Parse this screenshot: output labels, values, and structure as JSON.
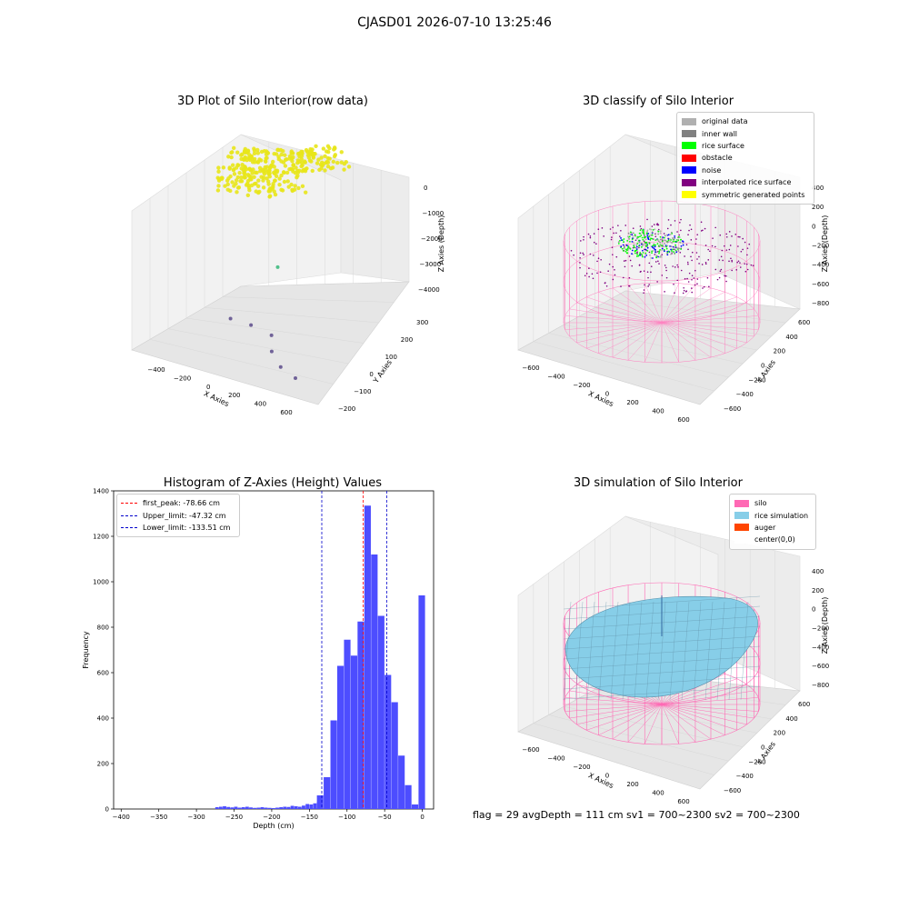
{
  "suptitle": "CJASD01 2026-07-10 13:25:46",
  "status_text": "flag = 29  avgDepth = 111 cm  sv1 = 700~2300  sv2 = 700~2300",
  "chart_data": [
    {
      "type": "scatter",
      "projection": "3d",
      "title": "3D Plot of Silo Interior(row data)",
      "xlabel": "X Axies",
      "ylabel": "Y Axies",
      "zlabel": "Z Axies (Depth)",
      "x_ticks": [
        "−400",
        "−200",
        "0",
        "200",
        "400",
        "600"
      ],
      "y_ticks": [
        "−200",
        "−100",
        "0",
        "100",
        "200",
        "300"
      ],
      "z_ticks": [
        "0",
        "−1000",
        "−2000",
        "−3000",
        "−4000"
      ],
      "xlim": [
        -500,
        700
      ],
      "ylim": [
        -250,
        350
      ],
      "zlim": [
        -4500,
        200
      ],
      "colormap": "viridis",
      "cluster_points": [
        {
          "x": -300,
          "y": 200,
          "z": -500
        },
        {
          "x": -150,
          "y": 180,
          "z": -400
        },
        {
          "x": 0,
          "y": 220,
          "z": -350
        },
        {
          "x": 150,
          "y": 260,
          "z": -300
        },
        {
          "x": 280,
          "y": 300,
          "z": -250
        },
        {
          "x": -250,
          "y": 100,
          "z": -700
        },
        {
          "x": -80,
          "y": 80,
          "z": -650
        },
        {
          "x": 100,
          "y": 140,
          "z": -550
        }
      ],
      "outlier_points": [
        {
          "x": 20,
          "y": 150,
          "z": -3000
        },
        {
          "x": -100,
          "y": -80,
          "z": -3800
        },
        {
          "x": 50,
          "y": -60,
          "z": -3900
        },
        {
          "x": 200,
          "y": -40,
          "z": -4100
        },
        {
          "x": 300,
          "y": -120,
          "z": -4200
        },
        {
          "x": 450,
          "y": -180,
          "z": -4300
        },
        {
          "x": 600,
          "y": -200,
          "z": -4400
        }
      ]
    },
    {
      "type": "scatter",
      "projection": "3d",
      "title": "3D classify of Silo Interior",
      "xlabel": "X Axies",
      "ylabel": "Y Axies",
      "zlabel": "Z Axies (Depth)",
      "x_ticks": [
        "−600",
        "−400",
        "−200",
        "0",
        "200",
        "400",
        "600"
      ],
      "y_ticks": [
        "−600",
        "−400",
        "−200",
        "0",
        "200",
        "400",
        "600"
      ],
      "z_ticks": [
        "400",
        "200",
        "0",
        "−200",
        "−400",
        "−600",
        "−800"
      ],
      "legend": [
        {
          "label": "original data",
          "color": "#b0b0b0"
        },
        {
          "label": "inner wall",
          "color": "#808080"
        },
        {
          "label": "rice surface",
          "color": "#00ff00"
        },
        {
          "label": "obstacle",
          "color": "#ff0000"
        },
        {
          "label": "noise",
          "color": "#0000ff"
        },
        {
          "label": "interpolated rice surface",
          "color": "#800080"
        },
        {
          "label": "symmetric generated points",
          "color": "#ffff00"
        }
      ],
      "wireframe_color": "#ff80c0"
    },
    {
      "type": "bar",
      "title": "Histogram of Z-Axies (Height) Values",
      "xlabel": "Depth (cm)",
      "ylabel": "Frequency",
      "xlim": [
        -410,
        15
      ],
      "ylim": [
        0,
        1400
      ],
      "bin_width": 5,
      "bar_color": "#4d4dff",
      "x_ticks": [
        -400,
        -350,
        -300,
        -250,
        -200,
        -150,
        -100,
        -50,
        0
      ],
      "x_tick_labels": [
        "−400",
        "−350",
        "−300",
        "−250",
        "−200",
        "−150",
        "−100",
        "−50",
        "0"
      ],
      "y_ticks": [
        0,
        200,
        400,
        600,
        800,
        1000,
        1200,
        1400
      ],
      "bins": [
        {
          "x": -275,
          "count": 8
        },
        {
          "x": -270,
          "count": 10
        },
        {
          "x": -265,
          "count": 12
        },
        {
          "x": -260,
          "count": 9
        },
        {
          "x": -255,
          "count": 7
        },
        {
          "x": -250,
          "count": 10
        },
        {
          "x": -245,
          "count": 6
        },
        {
          "x": -240,
          "count": 8
        },
        {
          "x": -235,
          "count": 10
        },
        {
          "x": -230,
          "count": 7
        },
        {
          "x": -225,
          "count": 5
        },
        {
          "x": -220,
          "count": 6
        },
        {
          "x": -215,
          "count": 8
        },
        {
          "x": -210,
          "count": 6
        },
        {
          "x": -205,
          "count": 5
        },
        {
          "x": -200,
          "count": 4
        },
        {
          "x": -195,
          "count": 6
        },
        {
          "x": -190,
          "count": 8
        },
        {
          "x": -185,
          "count": 10
        },
        {
          "x": -180,
          "count": 9
        },
        {
          "x": -175,
          "count": 14
        },
        {
          "x": -170,
          "count": 12
        },
        {
          "x": -165,
          "count": 10
        },
        {
          "x": -160,
          "count": 15
        },
        {
          "x": -155,
          "count": 22
        },
        {
          "x": -150,
          "count": 20
        },
        {
          "x": -145,
          "count": 25
        },
        {
          "x": -140,
          "count": 30
        },
        {
          "x": -135,
          "count": 60
        },
        {
          "x": -130,
          "count": 140
        },
        {
          "x": -125,
          "count": 390
        },
        {
          "x": -120,
          "count": 630
        },
        {
          "x": -115,
          "count": 745
        },
        {
          "x": -110,
          "count": 675
        },
        {
          "x": -105,
          "count": 825
        },
        {
          "x": -100,
          "count": 1335
        },
        {
          "x": -95,
          "count": 1120
        },
        {
          "x": -90,
          "count": 850
        },
        {
          "x": -85,
          "count": 590
        },
        {
          "x": -80,
          "count": 470
        },
        {
          "x": -75,
          "count": 235
        },
        {
          "x": -70,
          "count": 105
        },
        {
          "x": -65,
          "count": 20
        },
        {
          "x": -60,
          "count": 940
        }
      ],
      "lines": [
        {
          "label": "first_peak: -78.66 cm",
          "x": -78.66,
          "color": "#ff0000"
        },
        {
          "label": "Upper_limit: -47.32 cm",
          "x": -47.32,
          "color": "#0000cc"
        },
        {
          "label": "Lower_limit: -133.51 cm",
          "x": -133.51,
          "color": "#0000cc"
        }
      ]
    },
    {
      "type": "surface",
      "projection": "3d",
      "title": "3D simulation of Silo Interior",
      "xlabel": "X Axies",
      "ylabel": "Y Axies",
      "zlabel": "Z Axies (Depth)",
      "x_ticks": [
        "−600",
        "−400",
        "−200",
        "0",
        "200",
        "400",
        "600"
      ],
      "y_ticks": [
        "−600",
        "−400",
        "−200",
        "0",
        "200",
        "400",
        "600"
      ],
      "z_ticks": [
        "400",
        "200",
        "0",
        "−200",
        "−400",
        "−600",
        "−800"
      ],
      "legend": [
        {
          "label": "silo",
          "color": "#ff69b4"
        },
        {
          "label": "rice simulation",
          "color": "#87cee8"
        },
        {
          "label": "auger",
          "color": "#ff4500"
        },
        {
          "label": "center(0,0)",
          "color": "#ffffff"
        }
      ]
    }
  ]
}
